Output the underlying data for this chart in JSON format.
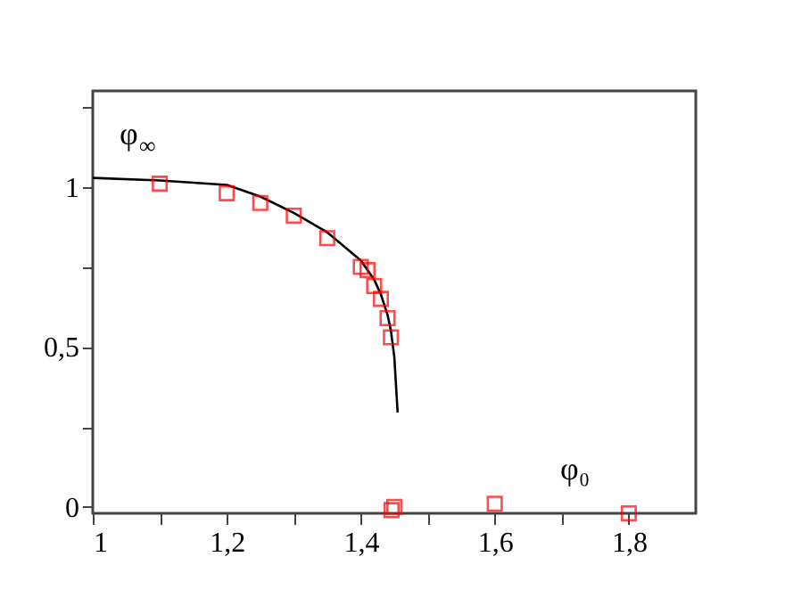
{
  "chart_data": {
    "type": "scatter",
    "xlabel": "φ₀",
    "ylabel": "φ$_{∞}$",
    "marker": "square",
    "grid": false,
    "xlim": [
      1,
      1.9
    ],
    "ylim": [
      -0.02,
      1.3
    ],
    "xticks": [
      1,
      {
        "value": 1.1,
        "label": null
      },
      {
        "value": 1.2,
        "label": "1,2"
      },
      {
        "value": 1.3,
        "label": null
      },
      {
        "value": 1.4,
        "label": "1,4"
      },
      {
        "value": 1.5,
        "label": null
      },
      {
        "value": 1.6,
        "label": "1,6"
      },
      {
        "value": 1.7,
        "label": null
      },
      {
        "value": 1.8,
        "label": "1,8"
      }
    ],
    "yticks": [
      0,
      {
        "value": 0.25,
        "label": null
      },
      {
        "value": 0.5,
        "label": "0,5"
      },
      {
        "value": 0.75,
        "label": null
      },
      1,
      {
        "value": 1.25,
        "label": null
      }
    ],
    "series": [
      {
        "type": "line",
        "color": "#000000",
        "marker": "none",
        "x": [
          1,
          1.1,
          1.2,
          1.25,
          1.3,
          1.35,
          1.4,
          1.42,
          1.43,
          1.44,
          1.445,
          1.45,
          1.455
        ],
        "values": [
          1.028,
          1.02,
          1.006,
          0.97,
          0.919,
          0.858,
          0.77,
          0.71,
          0.664,
          0.6,
          0.55,
          0.47,
          0.295
        ]
      },
      {
        "color": "#ff0000",
        "x": [
          1.1,
          1.2,
          1.25,
          1.3,
          1.35,
          1.4,
          1.41,
          1.42,
          1.43,
          1.44,
          1.445,
          1.45,
          1.446,
          1.6,
          1.8
        ],
        "values": [
          1.01,
          0.98,
          0.95,
          0.91,
          0.84,
          0.75,
          0.74,
          0.69,
          0.65,
          0.59,
          0.53,
          0.0,
          -0.01,
          0.01,
          -0.02
        ]
      }
    ]
  }
}
